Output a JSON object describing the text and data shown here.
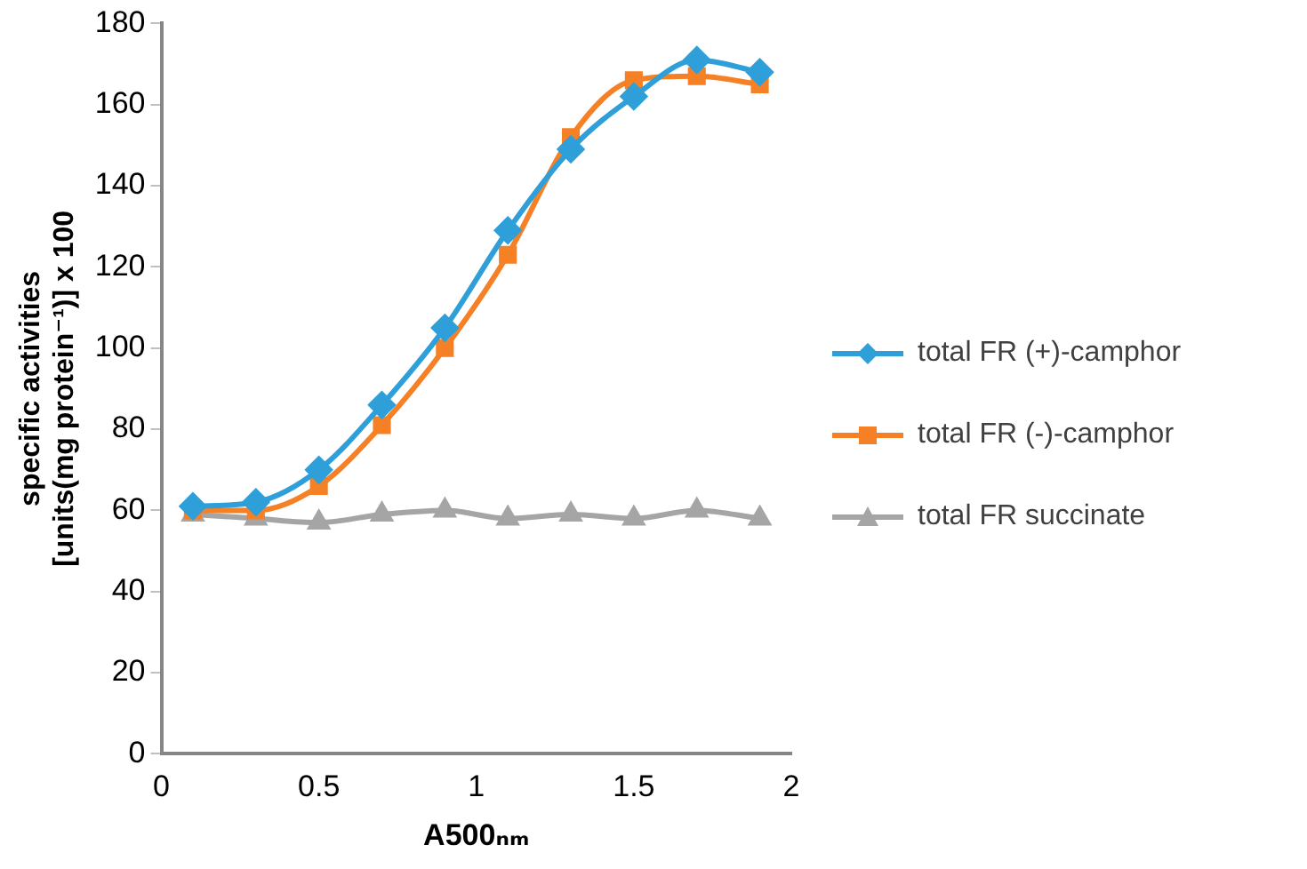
{
  "chart_data": {
    "type": "line",
    "xlabel": "A500ₙₘ",
    "ylabel": "specific activities\n[units(mg protein⁻¹)] x 100",
    "x": [
      0.1,
      0.3,
      0.5,
      0.7,
      0.9,
      1.1,
      1.3,
      1.5,
      1.7,
      1.9
    ],
    "series": [
      {
        "name": "total FR (+)-camphor",
        "color": "#2e9fd8",
        "marker": "diamond",
        "values": [
          61,
          62,
          70,
          86,
          105,
          129,
          149,
          162,
          171,
          168
        ]
      },
      {
        "name": "total FR (-)-camphor",
        "color": "#f58025",
        "marker": "square",
        "values": [
          60,
          60,
          66,
          81,
          100,
          123,
          152,
          166,
          167,
          165
        ]
      },
      {
        "name": "total FR succinate",
        "color": "#a5a5a5",
        "marker": "triangle",
        "values": [
          59,
          58,
          57,
          59,
          60,
          58,
          59,
          58,
          60,
          58
        ]
      }
    ],
    "xlim": [
      0,
      2
    ],
    "xticks": [
      0,
      0.5,
      1,
      1.5,
      2
    ],
    "ylim": [
      0,
      180
    ],
    "yticks": [
      0,
      20,
      40,
      60,
      80,
      100,
      120,
      140,
      160,
      180
    ],
    "grid": false,
    "legend": "right",
    "line_style": "solid"
  }
}
